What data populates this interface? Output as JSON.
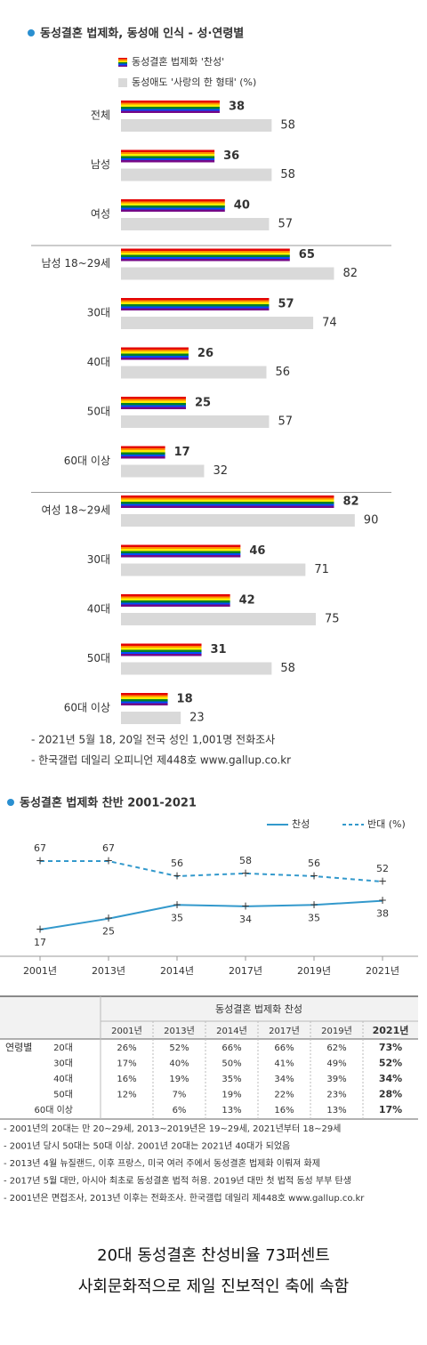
{
  "chart_data": [
    {
      "type": "hbar",
      "title": "동성결혼 법제화, 동성애 인식 - 성·연령별",
      "categories": [
        "전체",
        "남성",
        "여성",
        "남성 18~29세",
        "30대",
        "40대",
        "50대",
        "60대 이상",
        "여성 18~29세",
        "30대",
        "40대",
        "50대",
        "60대 이상"
      ],
      "series": [
        {
          "name": "동성결혼 법제화 '찬성'",
          "colors": [
            "#e40303",
            "#ff8c00",
            "#ffed00",
            "#008026",
            "#004dff",
            "#750787"
          ],
          "label_color": "#3399cc",
          "values": [
            38,
            36,
            40,
            65,
            57,
            26,
            25,
            17,
            82,
            46,
            42,
            31,
            18
          ]
        },
        {
          "name": "동성애도 '사랑의 한 형태' (%)",
          "color": "#d9d9d9",
          "label_color": "#555555",
          "values": [
            58,
            58,
            57,
            82,
            74,
            56,
            57,
            32,
            90,
            71,
            75,
            58,
            23
          ]
        }
      ],
      "notes": [
        "- 2021년 5월 18, 20일 전국 성인 1,001명 전화조사",
        "- 한국갤럽 데일리 오피니언 제448호 www.gallup.co.kr"
      ]
    },
    {
      "type": "line",
      "title": "동성결혼 법제화 찬반 2001-2021",
      "categories": [
        "2001년",
        "2013년",
        "2014년",
        "2017년",
        "2019년",
        "2021년"
      ],
      "series": [
        {
          "name": "찬성",
          "color": "#3399cc",
          "dashed": false,
          "values": [
            17,
            25,
            35,
            34,
            35,
            38
          ]
        },
        {
          "name": "반대 (%)",
          "color": "#3399cc",
          "dashed": true,
          "values": [
            67,
            67,
            56,
            58,
            56,
            52
          ]
        }
      ]
    }
  ],
  "table": {
    "header": "동성결혼 법제화 찬성",
    "group": "연령별",
    "columns": [
      "2001년",
      "2013년",
      "2014년",
      "2017년",
      "2019년",
      "2021년"
    ],
    "rows": [
      {
        "label": "20대",
        "cells": [
          "26%",
          "52%",
          "66%",
          "66%",
          "62%",
          "73%"
        ]
      },
      {
        "label": "30대",
        "cells": [
          "17%",
          "40%",
          "50%",
          "41%",
          "49%",
          "52%"
        ]
      },
      {
        "label": "40대",
        "cells": [
          "16%",
          "19%",
          "35%",
          "34%",
          "39%",
          "34%"
        ]
      },
      {
        "label": "50대",
        "cells": [
          "12%",
          "7%",
          "19%",
          "22%",
          "23%",
          "28%"
        ]
      },
      {
        "label": "60대 이상",
        "cells": [
          null,
          "6%",
          "13%",
          "16%",
          "13%",
          "17%"
        ]
      }
    ]
  },
  "footnotes": [
    "- 2001년의 20대는 만 20~29세, 2013~2019년은 19~29세, 2021년부터 18~29세",
    "- 2001년 당시 50대는 50대 이상. 2001년 20대는 2021년 40대가 되었음",
    "- 2013년 4월 뉴질랜드, 이후 프랑스, 미국 여러 주에서 동성결혼 법제화 이뤄져 화제",
    "- 2017년 5월 대만, 아시아 최초로 동성결혼 법적 허용. 2019년 대만 첫 법적 동성 부부 탄생",
    "- 2001년은 면접조사, 2013년 이후는 전화조사. 한국갤럽 데일리 제448호 www.gallup.co.kr"
  ],
  "caption": [
    "20대 동성결혼 찬성비율 73퍼센트",
    "사회문화적으로 제일 진보적인 축에 속함"
  ]
}
